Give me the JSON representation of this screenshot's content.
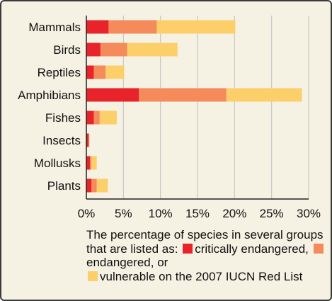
{
  "colors": {
    "critically": "#e8242a",
    "endangered": "#f58a5a",
    "vulnerable": "#fccf6b",
    "grid": "#c8c8c8",
    "background": "#f5f1e3"
  },
  "caption": {
    "intro": "The percentage of species in several groups that are listed as:",
    "critically": "critically",
    "endangered_prefix": "endangered,",
    "endangered": "endangered, or",
    "vulnerable": "vulnerable on the 2007 IUCN Red List"
  },
  "chart_data": {
    "type": "bar",
    "orientation": "horizontal",
    "stacked": true,
    "categories": [
      "Mammals",
      "Birds",
      "Reptiles",
      "Amphibians",
      "Fishes",
      "Insects",
      "Mollusks",
      "Plants"
    ],
    "series": [
      {
        "name": "critically endangered",
        "values": [
          3.0,
          1.9,
          1.0,
          7.1,
          1.0,
          0.3,
          0.5,
          0.7
        ]
      },
      {
        "name": "endangered",
        "values": [
          6.5,
          3.6,
          1.6,
          11.8,
          0.8,
          0.1,
          0.2,
          0.7
        ]
      },
      {
        "name": "vulnerable",
        "values": [
          10.6,
          6.8,
          2.5,
          10.2,
          2.3,
          0.0,
          0.7,
          1.5
        ]
      }
    ],
    "xlim": [
      0,
      30
    ],
    "xticks": [
      0,
      5,
      10,
      15,
      20,
      25,
      30
    ],
    "xtick_labels": [
      "0%",
      "5%",
      "10%",
      "15%",
      "20%",
      "25%",
      "30%"
    ],
    "grid": true,
    "title": "",
    "xlabel": "",
    "ylabel": ""
  }
}
